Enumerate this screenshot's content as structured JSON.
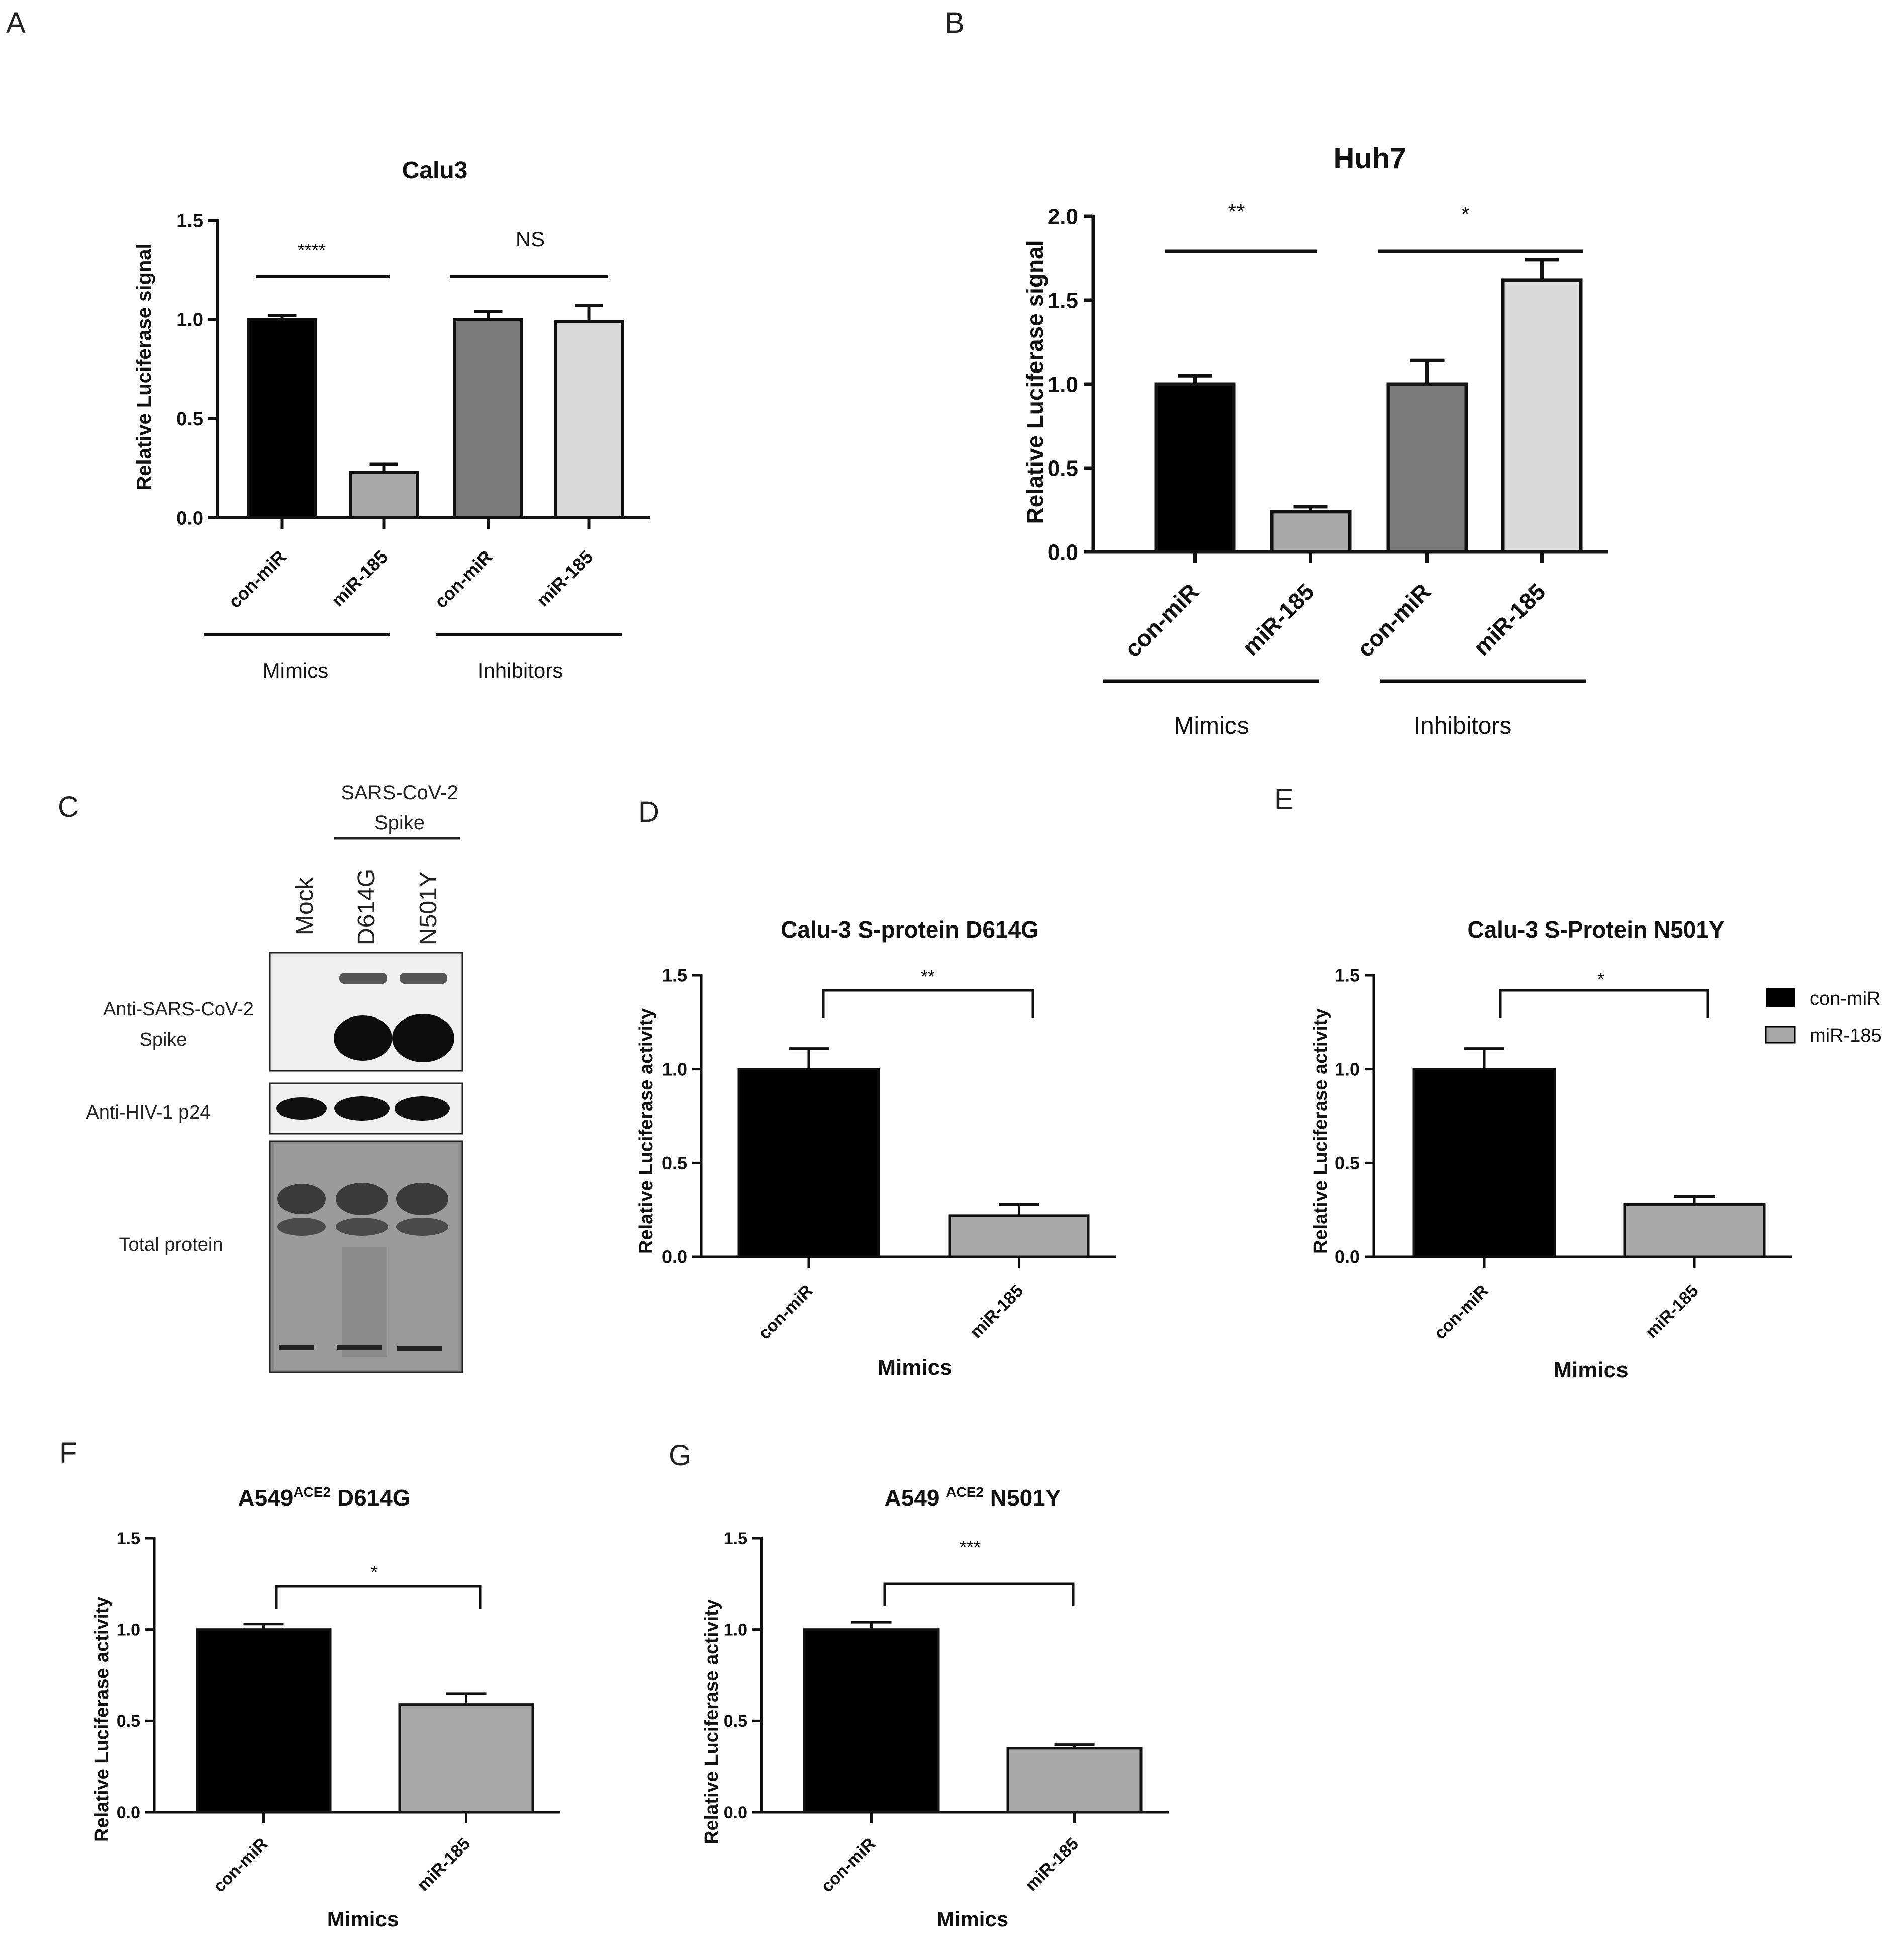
{
  "panels": [
    "A",
    "B",
    "C",
    "D",
    "E",
    "F",
    "G"
  ],
  "colors": {
    "con_miR_mimic": "#000000",
    "miR185_mimic": "#a9a9a9",
    "con_miR_inhibitor": "#7a7a7a",
    "miR185_inhibitor": "#d9d9d9"
  },
  "chart_data": [
    {
      "panel": "A",
      "type": "bar",
      "title": "Calu3",
      "ylabel": "Relative Luciferase signal",
      "ylim": [
        0,
        1.5
      ],
      "yticks": [
        "0.0",
        "0.5",
        "1.0",
        "1.5"
      ],
      "categories": [
        "con-miR",
        "miR-185",
        "con-miR",
        "miR-185"
      ],
      "values": [
        1.0,
        0.23,
        1.0,
        0.99
      ],
      "errors": [
        0.02,
        0.04,
        0.04,
        0.08
      ],
      "groups": [
        {
          "label": "Mimics"
        },
        {
          "label": "Inhibitors"
        }
      ],
      "significance": [
        "****",
        "NS"
      ]
    },
    {
      "panel": "B",
      "type": "bar",
      "title": "Huh7",
      "ylabel": "Relative Luciferase signal",
      "ylim": [
        0,
        2.0
      ],
      "yticks": [
        "0.0",
        "0.5",
        "1.0",
        "1.5",
        "2.0"
      ],
      "categories": [
        "con-miR",
        "miR-185",
        "con-miR",
        "miR-185"
      ],
      "values": [
        1.0,
        0.24,
        1.0,
        1.62
      ],
      "errors": [
        0.05,
        0.03,
        0.14,
        0.12
      ],
      "groups": [
        {
          "label": "Mimics"
        },
        {
          "label": "Inhibitors"
        }
      ],
      "significance": [
        "**",
        "*"
      ]
    },
    {
      "panel": "D",
      "type": "bar",
      "title": "Calu-3 S-protein D614G",
      "ylabel": "Relative Luciferase activity",
      "xlabel": "Mimics",
      "ylim": [
        0,
        1.5
      ],
      "yticks": [
        "0.0",
        "0.5",
        "1.0",
        "1.5"
      ],
      "categories": [
        "con-miR",
        "miR-185"
      ],
      "values": [
        1.0,
        0.22
      ],
      "errors": [
        0.11,
        0.06
      ],
      "significance": [
        "**"
      ]
    },
    {
      "panel": "E",
      "type": "bar",
      "title": "Calu-3 S-Protein N501Y",
      "ylabel": "Relative Luciferase activity",
      "xlabel": "Mimics",
      "ylim": [
        0,
        1.5
      ],
      "yticks": [
        "0.0",
        "0.5",
        "1.0",
        "1.5"
      ],
      "categories": [
        "con-miR",
        "miR-185"
      ],
      "values": [
        1.0,
        0.28
      ],
      "errors": [
        0.11,
        0.04
      ],
      "significance": [
        "*"
      ],
      "legend": [
        "con-miR",
        "miR-185"
      ]
    },
    {
      "panel": "F",
      "type": "bar",
      "title_main": "A549",
      "title_sup": "ACE2",
      "title_tail": " D614G",
      "ylabel": "Relative Luciferase activity",
      "xlabel": "Mimics",
      "ylim": [
        0,
        1.5
      ],
      "yticks": [
        "0.0",
        "0.5",
        "1.0",
        "1.5"
      ],
      "categories": [
        "con-miR",
        "miR-185"
      ],
      "values": [
        1.0,
        0.59
      ],
      "errors": [
        0.03,
        0.06
      ],
      "significance": [
        "*"
      ]
    },
    {
      "panel": "G",
      "type": "bar",
      "title_main": "A549 ",
      "title_sup": "ACE2",
      "title_tail": "  N501Y",
      "ylabel": "Relative Luciferase activity",
      "xlabel": "Mimics",
      "ylim": [
        0,
        1.5
      ],
      "yticks": [
        "0.0",
        "0.5",
        "1.0",
        "1.5"
      ],
      "categories": [
        "con-miR",
        "miR-185"
      ],
      "values": [
        1.0,
        0.35
      ],
      "errors": [
        0.04,
        0.02
      ],
      "significance": [
        "***"
      ]
    }
  ],
  "blot": {
    "header_line1": "SARS-CoV-2",
    "header_line2": "Spike",
    "lanes": [
      "Mock",
      "D614G",
      "N501Y"
    ],
    "rows": [
      "Anti-SARS-CoV-2",
      "Spike",
      "Anti-HIV-1 p24",
      "Total protein"
    ]
  }
}
